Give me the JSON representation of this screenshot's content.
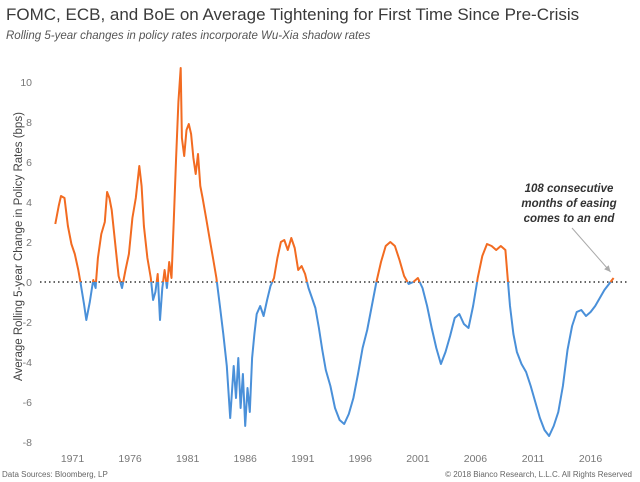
{
  "chart_data": {
    "type": "line",
    "title": "FOMC, ECB, and BoE on Average Tightening for First Time Since Pre-Crisis",
    "subtitle": "Rolling 5-year changes in policy rates incorporate Wu-Xia shadow rates",
    "xlabel": "",
    "ylabel": "Average Rolling 5-year Change in Policy Rates (bps)",
    "xlim": [
      1968.0,
      2019.6
    ],
    "ylim": [
      -8.4,
      11.2
    ],
    "x_ticks": [
      1971,
      1976,
      1981,
      1986,
      1991,
      1996,
      2001,
      2006,
      2011,
      2016
    ],
    "y_ticks": [
      -8,
      -6,
      -4,
      -2,
      0,
      2,
      4,
      6,
      8,
      10
    ],
    "zero_line": "dotted",
    "grid": false,
    "legend": "none",
    "colors": {
      "positive": "#f26b21",
      "negative": "#4a90d9",
      "zero_line": "#333333",
      "arrow": "#aaaaaa"
    },
    "x": [
      1969.5,
      1969.8,
      1970.0,
      1970.3,
      1970.6,
      1970.9,
      1971.2,
      1971.5,
      1971.8,
      1972.0,
      1972.2,
      1972.5,
      1972.8,
      1973.0,
      1973.2,
      1973.5,
      1973.8,
      1974.0,
      1974.2,
      1974.4,
      1974.6,
      1974.8,
      1975.0,
      1975.3,
      1975.6,
      1975.9,
      1976.2,
      1976.5,
      1976.8,
      1977.0,
      1977.2,
      1977.5,
      1977.8,
      1978.0,
      1978.2,
      1978.4,
      1978.6,
      1978.8,
      1979.0,
      1979.2,
      1979.4,
      1979.6,
      1979.8,
      1980.0,
      1980.2,
      1980.4,
      1980.5,
      1980.7,
      1980.9,
      1981.1,
      1981.3,
      1981.5,
      1981.7,
      1981.9,
      1982.1,
      1982.3,
      1982.6,
      1982.9,
      1983.2,
      1983.5,
      1983.8,
      1984.1,
      1984.4,
      1984.7,
      1985.0,
      1985.2,
      1985.4,
      1985.6,
      1985.8,
      1986.0,
      1986.2,
      1986.4,
      1986.6,
      1986.8,
      1987.0,
      1987.3,
      1987.6,
      1987.9,
      1988.2,
      1988.5,
      1988.8,
      1989.1,
      1989.4,
      1989.7,
      1990.0,
      1990.3,
      1990.6,
      1990.9,
      1991.2,
      1991.5,
      1991.8,
      1992.1,
      1992.4,
      1992.7,
      1993.0,
      1993.4,
      1993.8,
      1994.2,
      1994.6,
      1995.0,
      1995.4,
      1995.8,
      1996.2,
      1996.6,
      1997.0,
      1997.4,
      1997.8,
      1998.2,
      1998.6,
      1999.0,
      1999.4,
      1999.8,
      2000.2,
      2000.6,
      2001.0,
      2001.4,
      2001.8,
      2002.2,
      2002.6,
      2003.0,
      2003.4,
      2003.8,
      2004.2,
      2004.6,
      2005.0,
      2005.4,
      2005.8,
      2006.2,
      2006.6,
      2007.0,
      2007.4,
      2007.8,
      2008.2,
      2008.6,
      2009.0,
      2009.3,
      2009.6,
      2010.0,
      2010.4,
      2010.8,
      2011.2,
      2011.6,
      2012.0,
      2012.4,
      2012.8,
      2013.2,
      2013.6,
      2014.0,
      2014.4,
      2014.8,
      2015.2,
      2015.6,
      2016.0,
      2016.4,
      2016.8,
      2017.2,
      2017.6,
      2018.0
    ],
    "values": [
      2.9,
      3.8,
      4.3,
      4.2,
      2.8,
      1.9,
      1.4,
      0.6,
      -0.4,
      -1.1,
      -1.9,
      -1.0,
      0.1,
      -0.3,
      1.2,
      2.4,
      3.0,
      4.5,
      4.2,
      3.6,
      2.5,
      1.4,
      0.3,
      -0.3,
      0.6,
      1.4,
      3.2,
      4.2,
      5.8,
      4.8,
      2.8,
      1.2,
      0.2,
      -0.9,
      -0.5,
      0.4,
      -1.9,
      -0.3,
      0.6,
      -0.3,
      1.0,
      0.2,
      3.1,
      6.2,
      9.0,
      10.7,
      7.2,
      6.3,
      7.6,
      7.9,
      7.4,
      6.2,
      5.4,
      6.4,
      4.8,
      4.2,
      3.2,
      2.2,
      1.2,
      0.2,
      -1.2,
      -2.6,
      -4.2,
      -6.8,
      -4.2,
      -5.8,
      -3.8,
      -6.3,
      -4.6,
      -7.2,
      -5.3,
      -6.5,
      -3.8,
      -2.6,
      -1.6,
      -1.2,
      -1.7,
      -0.9,
      -0.2,
      0.2,
      1.2,
      2.0,
      2.1,
      1.6,
      2.2,
      1.7,
      0.6,
      0.8,
      0.4,
      -0.3,
      -0.8,
      -1.3,
      -2.3,
      -3.4,
      -4.4,
      -5.2,
      -6.3,
      -6.9,
      -7.1,
      -6.6,
      -5.8,
      -4.6,
      -3.3,
      -2.4,
      -1.2,
      0.0,
      1.0,
      1.8,
      2.0,
      1.8,
      1.1,
      0.3,
      -0.1,
      0.0,
      0.2,
      -0.3,
      -1.2,
      -2.3,
      -3.3,
      -4.1,
      -3.5,
      -2.7,
      -1.8,
      -1.6,
      -2.1,
      -2.3,
      -1.2,
      0.2,
      1.3,
      1.9,
      1.8,
      1.6,
      1.8,
      1.6,
      -1.2,
      -2.6,
      -3.5,
      -4.1,
      -4.5,
      -5.2,
      -6.0,
      -6.8,
      -7.4,
      -7.7,
      -7.2,
      -6.5,
      -5.2,
      -3.4,
      -2.2,
      -1.5,
      -1.4,
      -1.7,
      -1.5,
      -1.2,
      -0.8,
      -0.4,
      -0.1,
      0.2
    ]
  },
  "annotation": {
    "text_lines": [
      "108 consecutive",
      "months of easing",
      "comes to an end"
    ],
    "arrow_to": {
      "x": 2018.0,
      "y": 0.2
    }
  },
  "footer": {
    "source": "Data Sources: Bloomberg, LP",
    "copyright": "© 2018 Bianco Research, L.L.C. All Rights Reserved"
  }
}
